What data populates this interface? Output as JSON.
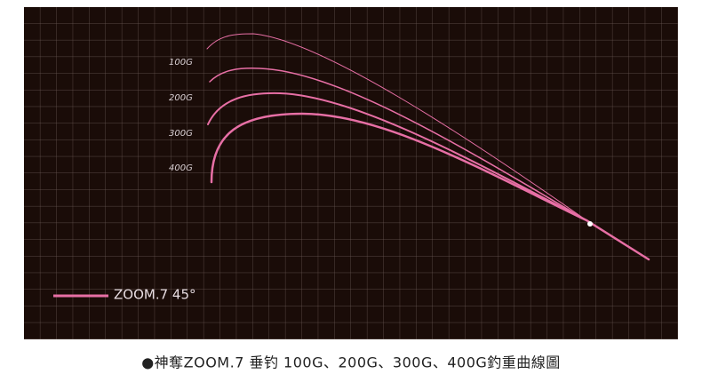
{
  "labels": [
    "100G",
    "200G",
    "300G",
    "400G"
  ],
  "legend": "ZOOM.7 45°",
  "caption": "●神奪ZOOM.7 垂钓 100G、200G、300G、400G釣重曲線圖"
}
